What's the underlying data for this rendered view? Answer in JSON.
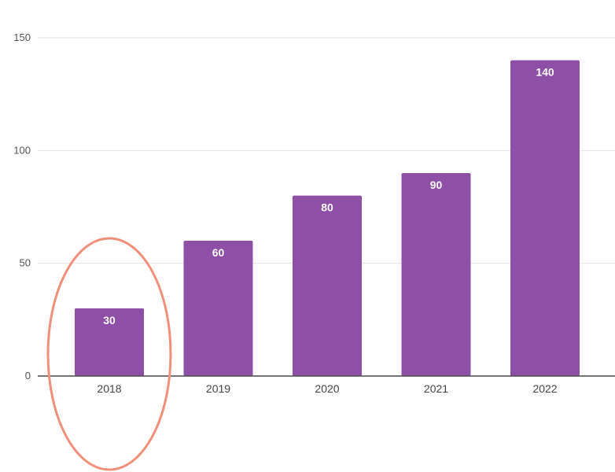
{
  "chart_data": {
    "type": "bar",
    "categories": [
      "2018",
      "2019",
      "2020",
      "2021",
      "2022"
    ],
    "values": [
      30,
      60,
      80,
      90,
      140
    ],
    "data_labels": [
      "30",
      "60",
      "80",
      "90",
      "140"
    ],
    "title": "",
    "xlabel": "",
    "ylabel": "",
    "ylim": [
      0,
      150
    ],
    "yticks": [
      "0",
      "50",
      "100",
      "150"
    ],
    "grid": true,
    "legend": "none",
    "bar_color": "#8e4fa6",
    "highlighted_category": "2018",
    "highlight_color": "#f0907a"
  }
}
